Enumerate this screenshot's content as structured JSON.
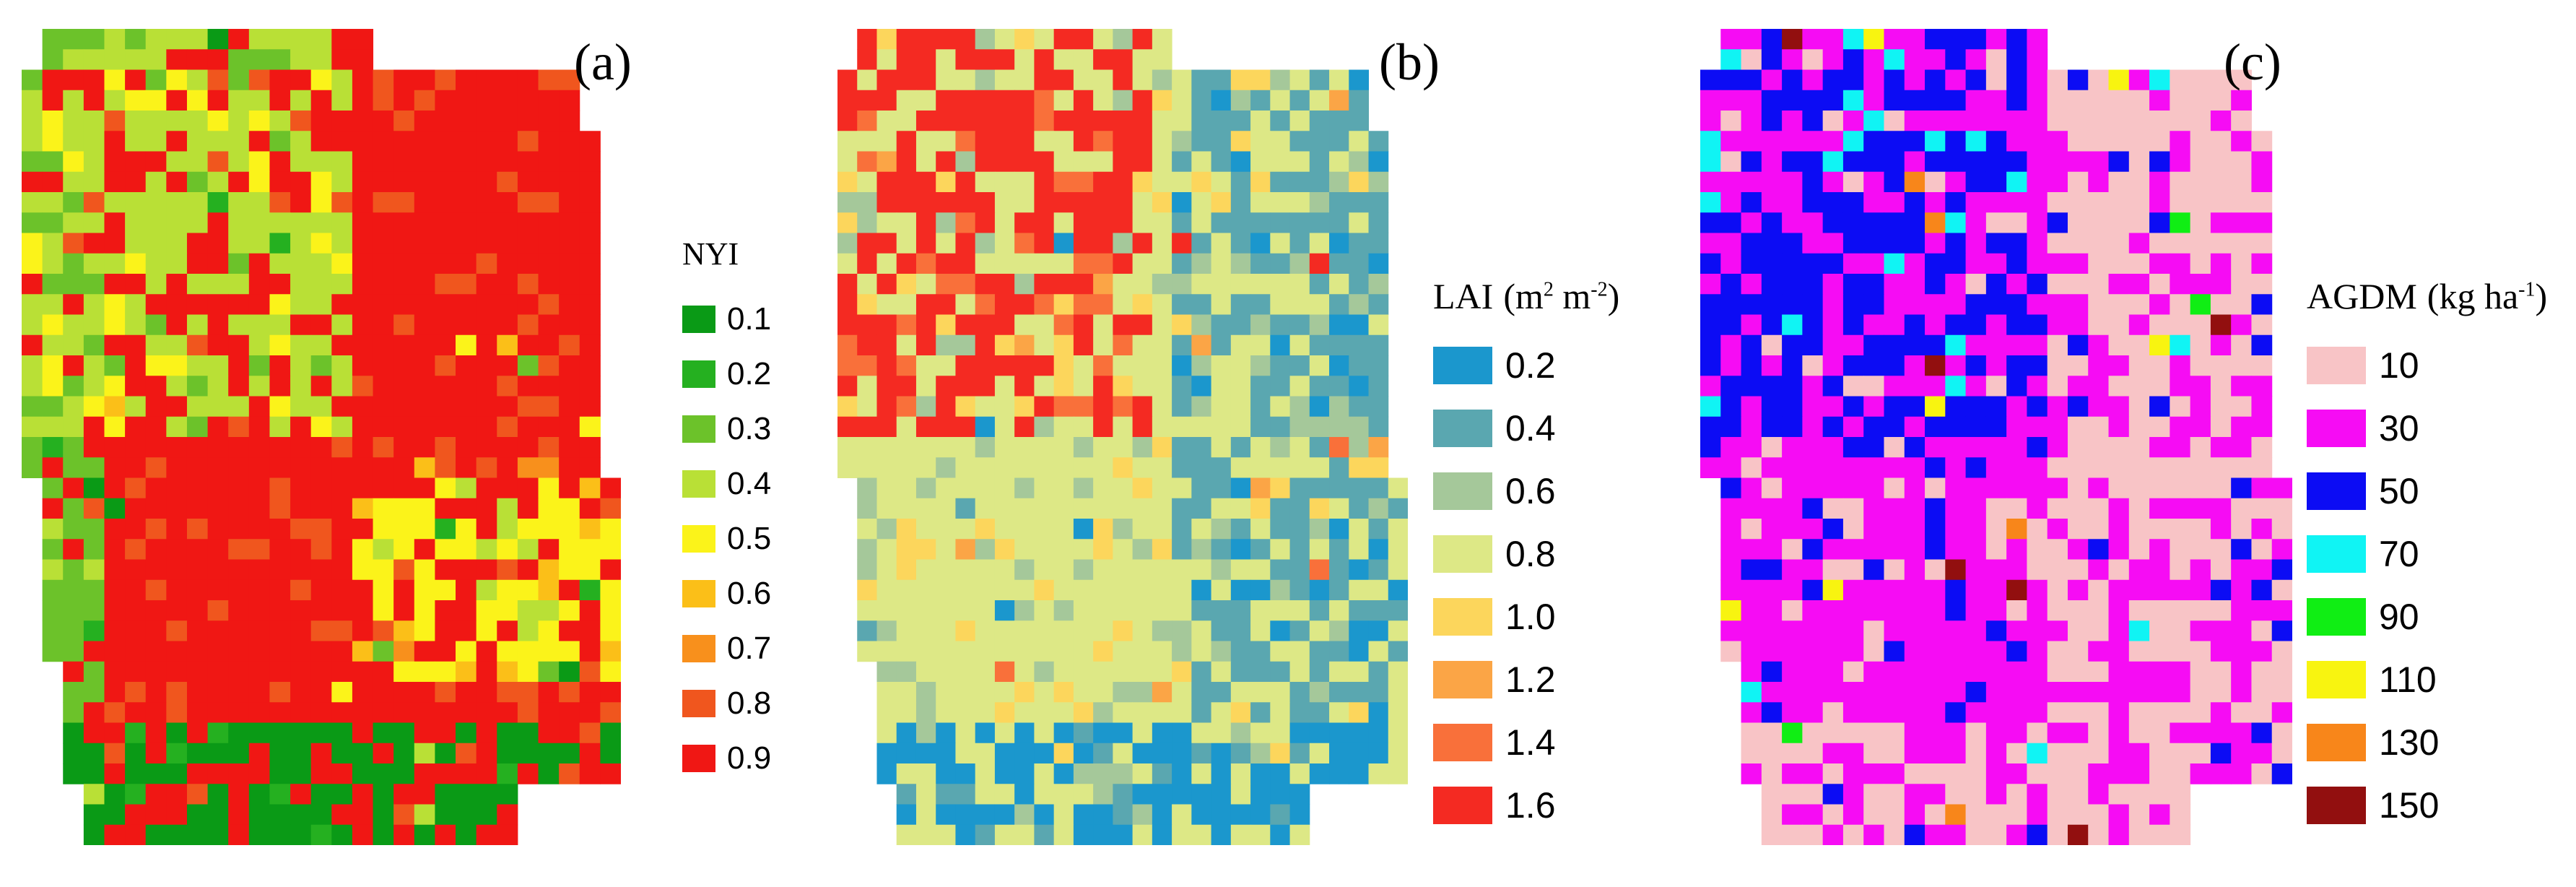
{
  "panels": [
    {
      "id": "a",
      "label": "(a)",
      "legend": {
        "title": "NYI",
        "unit_parts": [],
        "items": [
          {
            "value": "0.1",
            "color": "#0a9a16"
          },
          {
            "value": "0.2",
            "color": "#25b020"
          },
          {
            "value": "0.3",
            "color": "#6cc22a"
          },
          {
            "value": "0.4",
            "color": "#b9e036"
          },
          {
            "value": "0.5",
            "color": "#fbf31a"
          },
          {
            "value": "0.6",
            "color": "#fbbf18"
          },
          {
            "value": "0.7",
            "color": "#f8901c"
          },
          {
            "value": "0.8",
            "color": "#f0561e"
          },
          {
            "value": "0.9",
            "color": "#f01714"
          }
        ]
      },
      "map": {
        "dominant_class": "0.9",
        "zones": [
          {
            "area": "west edge",
            "class": "0.3"
          },
          {
            "area": "northwest",
            "class": "0.4"
          },
          {
            "area": "southeast",
            "class": "0.5"
          },
          {
            "area": "south",
            "class": "0.1"
          }
        ]
      }
    },
    {
      "id": "b",
      "label": "(b)",
      "legend": {
        "title": "LAI",
        "unit_parts": [
          [
            "m",
            "2"
          ],
          [
            "m",
            "-2"
          ]
        ],
        "items": [
          {
            "value": "0.2",
            "color": "#1b97cd"
          },
          {
            "value": "0.4",
            "color": "#5aa7b0"
          },
          {
            "value": "0.6",
            "color": "#a5c89a"
          },
          {
            "value": "0.8",
            "color": "#dde886"
          },
          {
            "value": "1.0",
            "color": "#fcd65c"
          },
          {
            "value": "1.2",
            "color": "#fba546"
          },
          {
            "value": "1.4",
            "color": "#f9703a"
          },
          {
            "value": "1.6",
            "color": "#f42a22"
          }
        ]
      },
      "map": {
        "dominant_class": "0.8",
        "zones": [
          {
            "area": "northwest",
            "class": "1.6"
          },
          {
            "area": "east",
            "class": "0.4"
          },
          {
            "area": "south",
            "class": "0.2"
          }
        ]
      }
    },
    {
      "id": "c",
      "label": "(c)",
      "legend": {
        "title": "AGDM",
        "unit_parts": [
          [
            "kg",
            ""
          ],
          [
            "ha",
            "-1"
          ]
        ],
        "items": [
          {
            "value": "10",
            "color": "#f8c4c6"
          },
          {
            "value": "30",
            "color": "#f60cf4"
          },
          {
            "value": "50",
            "color": "#0c0cf4"
          },
          {
            "value": "70",
            "color": "#10f4f4"
          },
          {
            "value": "90",
            "color": "#10ee14"
          },
          {
            "value": "110",
            "color": "#f8f410"
          },
          {
            "value": "130",
            "color": "#f8861a"
          },
          {
            "value": "150",
            "color": "#920f0f"
          }
        ]
      },
      "map": {
        "dominant_class": "30",
        "zones": [
          {
            "area": "northwest",
            "class": "50"
          },
          {
            "area": "east",
            "class": "10"
          },
          {
            "area": "south",
            "class": "10"
          }
        ]
      }
    }
  ]
}
